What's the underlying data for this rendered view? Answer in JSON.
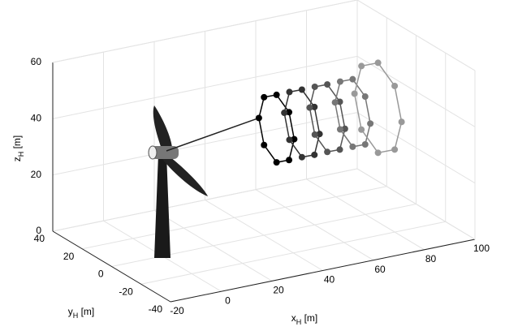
{
  "chart_data": {
    "type": "scatter3d",
    "xlabel": [
      "x",
      "H",
      " [m]"
    ],
    "ylabel": [
      "y",
      "H",
      " [m]"
    ],
    "zlabel": [
      "z",
      "H",
      " [m]"
    ],
    "xlim": [
      -20,
      100
    ],
    "ylim": [
      -40,
      40
    ],
    "zlim": [
      0,
      60
    ],
    "xticks": [
      -20,
      0,
      20,
      40,
      60,
      80,
      100
    ],
    "yticks": [
      -40,
      -20,
      0,
      20,
      40
    ],
    "zticks": [
      0,
      20,
      40,
      60
    ],
    "grid": true,
    "series": [
      {
        "color": "#000000",
        "x": [
          45,
          45,
          45,
          45,
          45,
          45,
          45,
          45
        ],
        "y": [
          12,
          8.5,
          0,
          -8.5,
          -12,
          -8.5,
          0,
          8.5
        ],
        "z": [
          37,
          45.5,
          49,
          45.5,
          37,
          28.5,
          25,
          28.5
        ]
      },
      {
        "color": "#333333",
        "x": [
          55,
          55,
          55,
          55,
          55,
          55,
          55,
          55
        ],
        "y": [
          12,
          8.5,
          0,
          -8.5,
          -12,
          -8.5,
          0,
          8.5
        ],
        "z": [
          37,
          45.5,
          49,
          45.5,
          37,
          28.5,
          25,
          28.5
        ]
      },
      {
        "color": "#555555",
        "x": [
          65,
          65,
          65,
          65,
          65,
          65,
          65,
          65
        ],
        "y": [
          12,
          8.5,
          0,
          -8.5,
          -12,
          -8.5,
          0,
          8.5
        ],
        "z": [
          37,
          45.5,
          49,
          45.5,
          37,
          28.5,
          25,
          28.5
        ]
      },
      {
        "color": "#777777",
        "x": [
          75,
          75,
          75,
          75,
          75,
          75,
          75,
          75
        ],
        "y": [
          12,
          8.5,
          0,
          -8.5,
          -12,
          -8.5,
          0,
          8.5
        ],
        "z": [
          37,
          45.5,
          49,
          45.5,
          37,
          28.5,
          25,
          28.5
        ]
      },
      {
        "color": "#999999",
        "x": [
          85,
          85,
          85,
          85,
          85,
          85,
          85,
          85
        ],
        "y": [
          16,
          11.3,
          0,
          -11.3,
          -16,
          -11.3,
          0,
          11.3
        ],
        "z": [
          37,
          48.3,
          53,
          48.3,
          37,
          25.7,
          21,
          25.7
        ]
      }
    ]
  }
}
